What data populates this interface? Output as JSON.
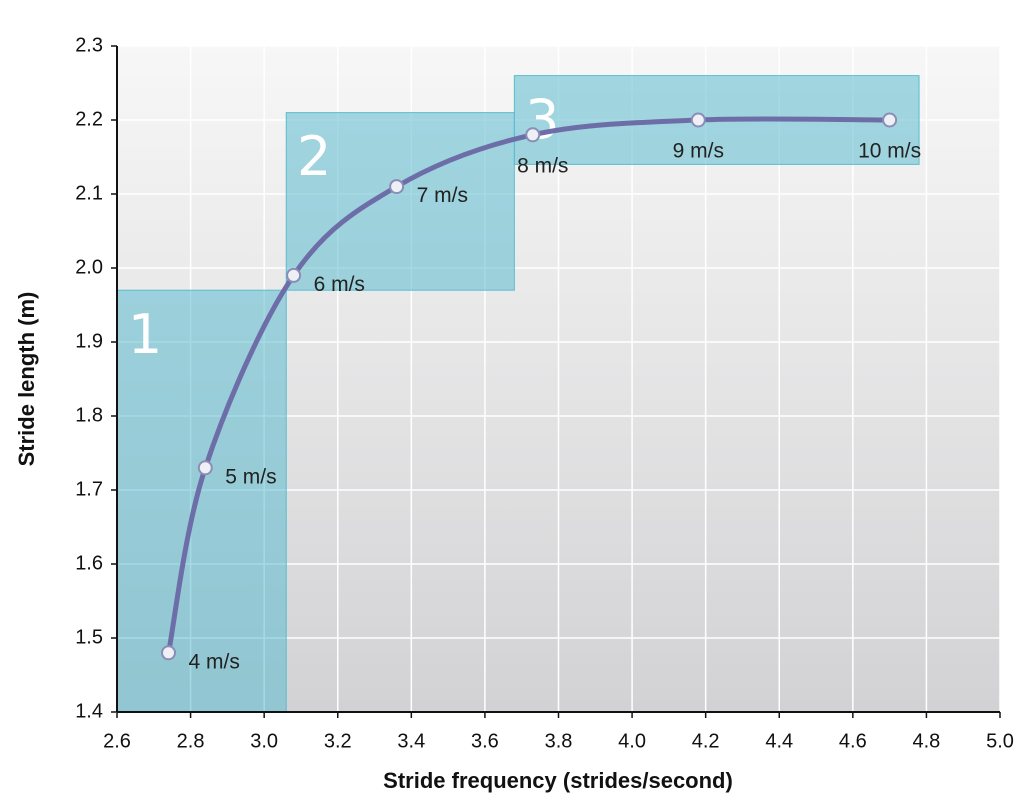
{
  "chart_data": {
    "type": "line",
    "x_label": "Stride frequency (strides/second)",
    "y_label": "Stride length (m)",
    "xlim": [
      2.6,
      5.0
    ],
    "ylim": [
      1.4,
      2.3
    ],
    "xticks": [
      2.6,
      2.8,
      {
        "value": 3,
        "label": "3.0"
      },
      3.2,
      3.4,
      3.6,
      3.8,
      {
        "value": 4,
        "label": "4.0"
      },
      4.2,
      4.4,
      4.6,
      4.8,
      {
        "value": 5,
        "label": "5.0"
      }
    ],
    "yticks": [
      1.4,
      1.5,
      1.6,
      1.7,
      1.8,
      1.9,
      {
        "value": 2,
        "label": "2.0"
      },
      2.1,
      2.2,
      2.3
    ],
    "grid": true,
    "series": [
      {
        "color": "#6d6ea8",
        "x": [
          2.74,
          2.84,
          3.08,
          3.36,
          3.73,
          4.18,
          4.7
        ],
        "values": [
          1.48,
          1.73,
          1.99,
          2.11,
          2.18,
          2.2,
          2.2
        ],
        "labels": [
          "4 m/s",
          "5 m/s",
          "6 m/s",
          "7 m/s",
          "8 m/s",
          "9 m/s",
          "10 m/s"
        ]
      }
    ],
    "zones": [
      {
        "label": "1",
        "x": [
          2.6,
          3.06
        ],
        "y": [
          1.4,
          1.97
        ]
      },
      {
        "label": "2",
        "x": [
          3.06,
          3.68
        ],
        "y": [
          1.97,
          2.21
        ]
      },
      {
        "label": "3",
        "x": [
          3.68,
          4.78
        ],
        "y": [
          2.14,
          2.26
        ]
      }
    ],
    "zone_color": "#5bbccf"
  }
}
